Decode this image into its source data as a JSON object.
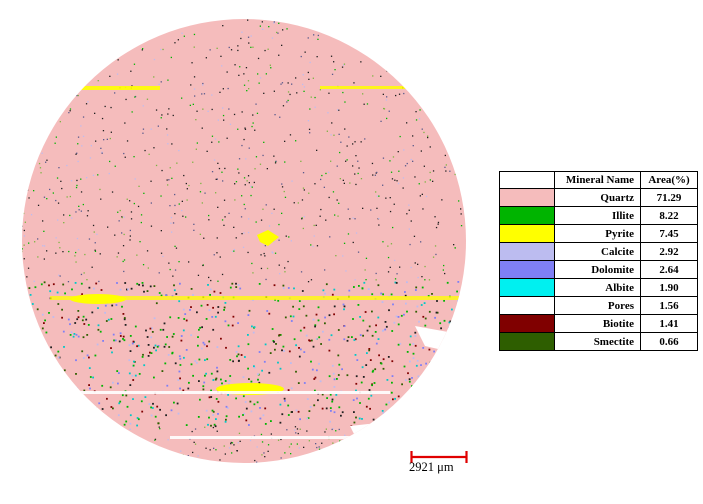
{
  "legend": {
    "header": {
      "swatch": "",
      "name": "Mineral Name",
      "area": "Area(%)"
    },
    "rows": [
      {
        "name": "Quartz",
        "area": "71.29",
        "color": "#f5bcbc"
      },
      {
        "name": "Illite",
        "area": "8.22",
        "color": "#00b400"
      },
      {
        "name": "Pyrite",
        "area": "7.45",
        "color": "#ffff00"
      },
      {
        "name": "Calcite",
        "area": "2.92",
        "color": "#bcbcf0"
      },
      {
        "name": "Dolomite",
        "area": "2.64",
        "color": "#7f7ff5"
      },
      {
        "name": "Albite",
        "area": "1.90",
        "color": "#00f0f0"
      },
      {
        "name": "Pores",
        "area": "1.56",
        "color": "#ffffff"
      },
      {
        "name": "Biotite",
        "area": "1.41",
        "color": "#800000"
      },
      {
        "name": "Smectite",
        "area": "0.66",
        "color": "#2e5e00"
      }
    ]
  },
  "scale_bar": {
    "label": "2921 μm",
    "color": "#e00000"
  }
}
